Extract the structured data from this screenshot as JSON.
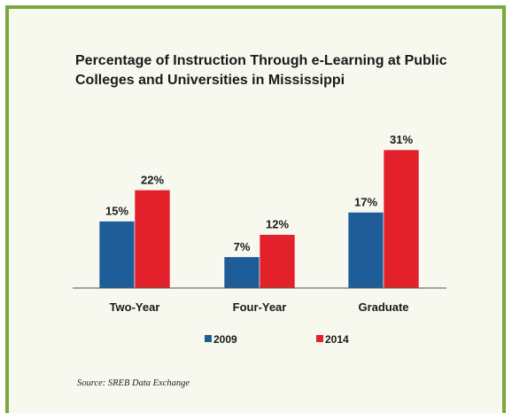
{
  "chart_data": {
    "type": "bar",
    "title": "Percentage of Instruction Through e-Learning at Public Colleges and Universities in Mississippi",
    "categories": [
      "Two-Year",
      "Four-Year",
      "Graduate"
    ],
    "series": [
      {
        "name": "2009",
        "values": [
          15,
          7,
          17
        ],
        "labels": [
          "15%",
          "7%",
          "17%"
        ],
        "color": "#1f5d99"
      },
      {
        "name": "2014",
        "values": [
          22,
          12,
          31
        ],
        "labels": [
          "22%",
          "12%",
          "31%"
        ],
        "color": "#e2212b"
      }
    ],
    "ylim": [
      0,
      31
    ],
    "grid": false,
    "legend": "bottom"
  },
  "source": "Source: SREB Data Exchange",
  "colors": {
    "border": "#7aa83a",
    "background": "#f7f8ee"
  }
}
